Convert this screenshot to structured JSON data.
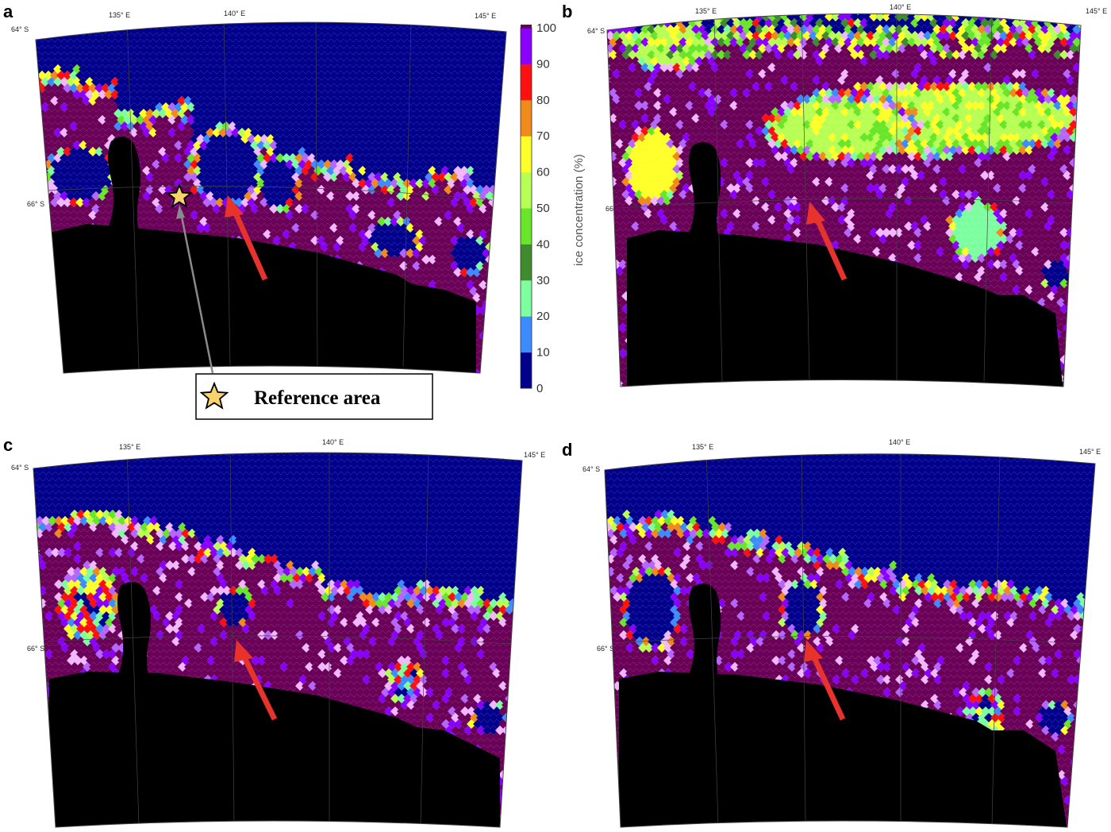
{
  "panels": [
    {
      "id": "a",
      "label": "a",
      "seed": 11,
      "variant": "a",
      "ticks": {
        "lon": [
          "135° E",
          "140° E",
          "145° E"
        ],
        "lat": [
          "64° S",
          "66° S"
        ]
      }
    },
    {
      "id": "b",
      "label": "b",
      "seed": 23,
      "variant": "b",
      "ticks": {
        "lon": [
          "135° E",
          "140° E",
          "145° E"
        ],
        "lat": [
          "64° S",
          "66° S"
        ]
      }
    },
    {
      "id": "c",
      "label": "c",
      "seed": 37,
      "variant": "c",
      "ticks": {
        "lon": [
          "135° E",
          "140° E",
          "145° E"
        ],
        "lat": [
          "64° S",
          "66° S"
        ]
      }
    },
    {
      "id": "d",
      "label": "d",
      "seed": 41,
      "variant": "d",
      "ticks": {
        "lon": [
          "135° E",
          "140° E",
          "145° E"
        ],
        "lat": [
          "64° S",
          "66° S"
        ]
      }
    }
  ],
  "colorbar": {
    "title": "ice concentration (%)",
    "ticks": [
      "0",
      "10",
      "20",
      "30",
      "40",
      "50",
      "60",
      "70",
      "80",
      "90",
      "100"
    ],
    "colors": [
      "#00008c",
      "#3d8cff",
      "#7dffa0",
      "#3e8c2e",
      "#68e62a",
      "#b8ff55",
      "#ffff2a",
      "#f08a1a",
      "#ff1010",
      "#8a00ff",
      "#6a0057"
    ]
  },
  "legend": {
    "text": "Reference area",
    "icon": "star-icon",
    "star_color": "#f7d36b"
  },
  "colors": {
    "land": "#000000",
    "open_water": "#00008c",
    "consolidated_ice": "#6a0057",
    "arrow": "#e8332d",
    "pointer": "#8a8a8a"
  }
}
